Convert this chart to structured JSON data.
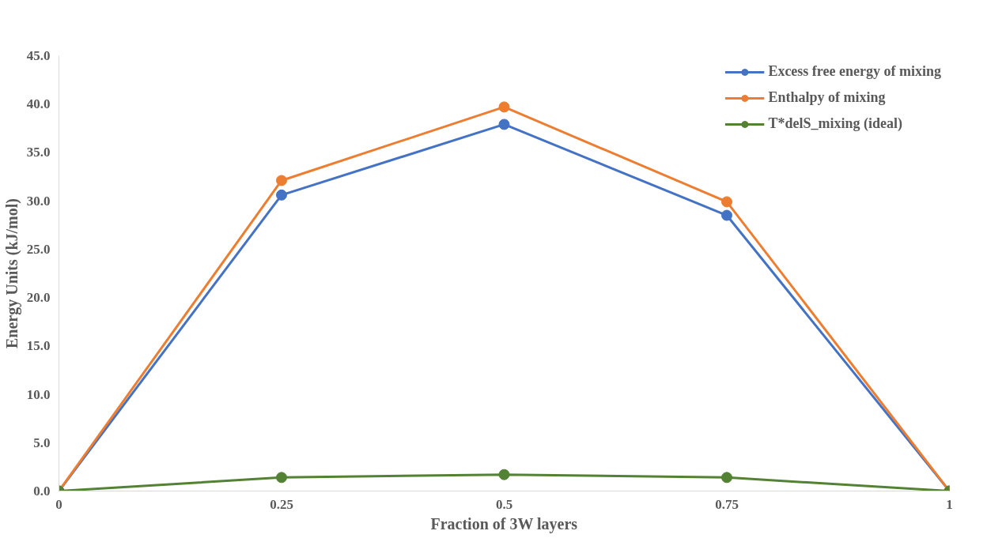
{
  "chart_data": {
    "type": "line",
    "xlabel": "Fraction of 3W layers",
    "ylabel": "Energy Units (kJ/mol)",
    "x": [
      0,
      0.25,
      0.5,
      0.75,
      1
    ],
    "series": [
      {
        "name": "Excess free energy of mixing",
        "color": "#4472c4",
        "values": [
          0.0,
          30.6,
          37.9,
          28.5,
          0.0
        ]
      },
      {
        "name": "Enthalpy of mixing",
        "color": "#ed7d31",
        "values": [
          0.0,
          32.1,
          39.7,
          29.9,
          0.0
        ]
      },
      {
        "name": "T*delS_mixing (ideal)",
        "color": "#548235",
        "values": [
          0.0,
          1.4,
          1.7,
          1.4,
          0.0
        ]
      }
    ],
    "xlim": [
      0,
      1
    ],
    "xticks": [
      0,
      0.25,
      0.5,
      0.75,
      1
    ],
    "ylim": [
      0,
      45
    ],
    "yticks": [
      {
        "value": 0,
        "label": "0.0"
      },
      {
        "value": 5,
        "label": "5.0"
      },
      {
        "value": 10,
        "label": "10.0"
      },
      {
        "value": 15,
        "label": "15.0"
      },
      {
        "value": 20,
        "label": "20.0"
      },
      {
        "value": 25,
        "label": "25.0"
      },
      {
        "value": 30,
        "label": "30.0"
      },
      {
        "value": 35,
        "label": "35.0"
      },
      {
        "value": 40,
        "label": "40.0"
      },
      {
        "value": 45,
        "label": "45.0"
      }
    ],
    "grid": false,
    "legend": "top right",
    "marker": "circle",
    "line_style": "solid"
  }
}
